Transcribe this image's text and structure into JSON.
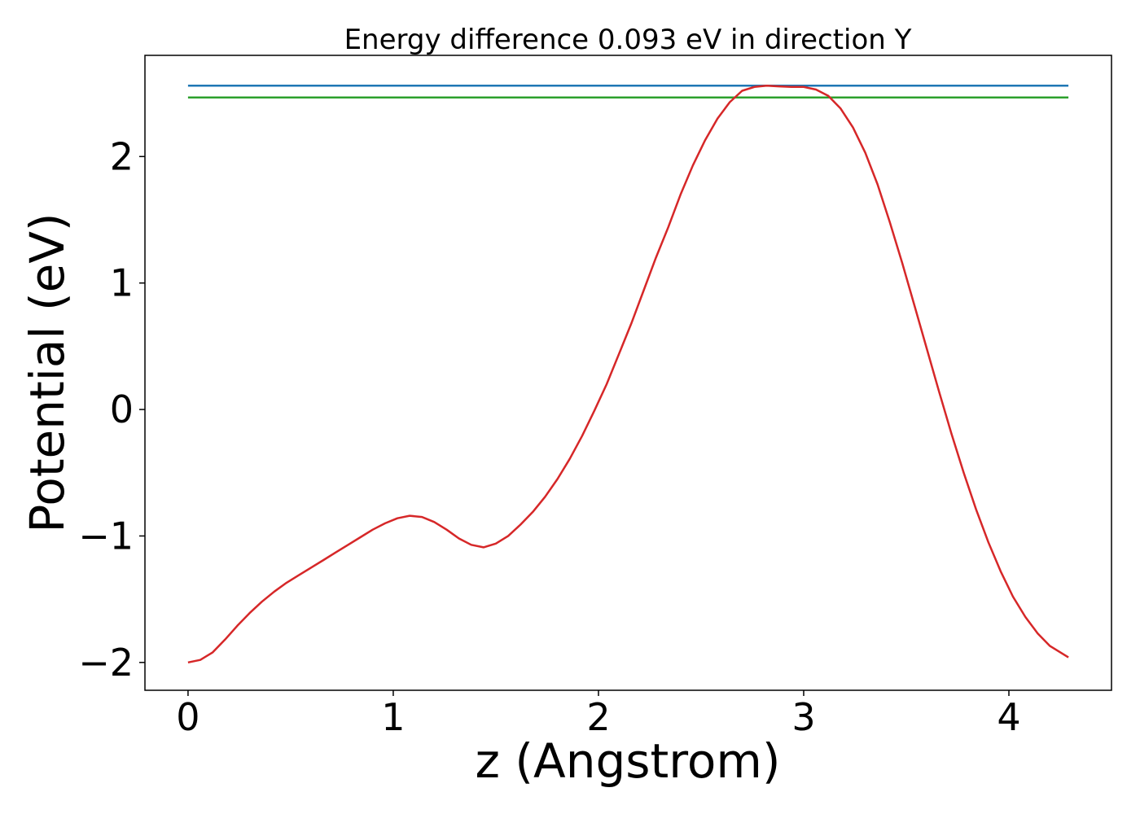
{
  "chart_data": {
    "type": "line",
    "title": "Energy difference 0.093 eV in direction Y",
    "xlabel": "z (Angstrom)",
    "ylabel": "Potential (eV)",
    "xlim": [
      -0.21,
      4.5
    ],
    "ylim": [
      -2.22,
      2.8
    ],
    "xticks": [
      0,
      1,
      2,
      3,
      4
    ],
    "xtick_labels": [
      "0",
      "1",
      "2",
      "3",
      "4"
    ],
    "yticks": [
      -2,
      -1,
      0,
      1,
      2
    ],
    "ytick_labels": [
      "−2",
      "−1",
      "0",
      "1",
      "2"
    ],
    "grid": false,
    "series": [
      {
        "color": "#1f77b4",
        "x": [
          0,
          4.29
        ],
        "y": [
          2.56,
          2.56
        ]
      },
      {
        "color": "#2ca02c",
        "x": [
          0,
          4.29
        ],
        "y": [
          2.467,
          2.467
        ]
      },
      {
        "color": "#d62728",
        "x": [
          0.0,
          0.06,
          0.12,
          0.18,
          0.24,
          0.3,
          0.36,
          0.42,
          0.48,
          0.54,
          0.6,
          0.66,
          0.72,
          0.78,
          0.84,
          0.9,
          0.96,
          1.02,
          1.08,
          1.14,
          1.2,
          1.26,
          1.32,
          1.38,
          1.44,
          1.5,
          1.56,
          1.62,
          1.68,
          1.74,
          1.8,
          1.86,
          1.92,
          1.98,
          2.04,
          2.1,
          2.16,
          2.22,
          2.28,
          2.34,
          2.4,
          2.46,
          2.52,
          2.58,
          2.64,
          2.7,
          2.76,
          2.82,
          2.88,
          2.94,
          3.0,
          3.06,
          3.12,
          3.18,
          3.24,
          3.3,
          3.36,
          3.42,
          3.48,
          3.54,
          3.6,
          3.66,
          3.72,
          3.78,
          3.84,
          3.9,
          3.96,
          4.02,
          4.08,
          4.14,
          4.2,
          4.29
        ],
        "y": [
          -2.0,
          -1.98,
          -1.92,
          -1.82,
          -1.71,
          -1.61,
          -1.52,
          -1.44,
          -1.37,
          -1.31,
          -1.25,
          -1.19,
          -1.13,
          -1.07,
          -1.01,
          -0.95,
          -0.9,
          -0.86,
          -0.84,
          -0.85,
          -0.89,
          -0.95,
          -1.02,
          -1.07,
          -1.09,
          -1.06,
          -1.0,
          -0.91,
          -0.81,
          -0.69,
          -0.55,
          -0.39,
          -0.21,
          -0.01,
          0.2,
          0.44,
          0.68,
          0.94,
          1.2,
          1.44,
          1.7,
          1.93,
          2.13,
          2.3,
          2.43,
          2.52,
          2.55,
          2.56,
          2.555,
          2.55,
          2.55,
          2.53,
          2.48,
          2.38,
          2.23,
          2.03,
          1.78,
          1.48,
          1.16,
          0.82,
          0.48,
          0.14,
          -0.19,
          -0.5,
          -0.79,
          -1.05,
          -1.28,
          -1.48,
          -1.64,
          -1.77,
          -1.87,
          -1.96
        ]
      }
    ]
  }
}
